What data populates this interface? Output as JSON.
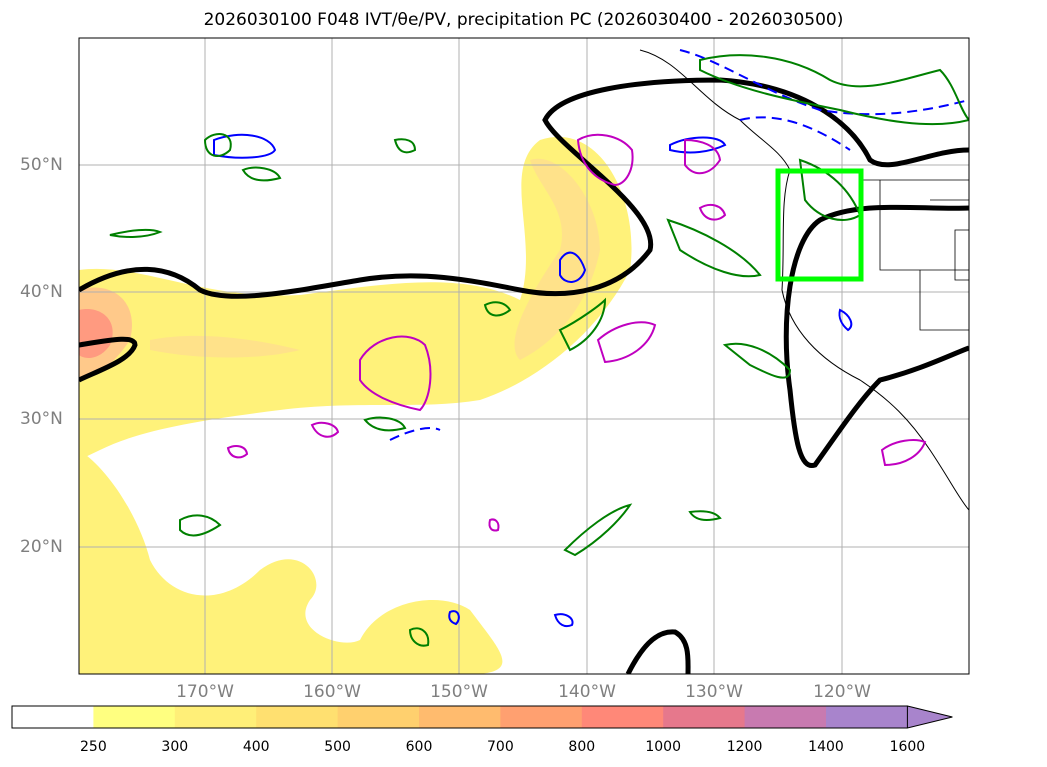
{
  "title": "2026030100 F048 IVT/θe/PV, precipitation PC (2026030400 - 2026030500)",
  "latitude_labels": [
    "50°N",
    "40°N",
    "30°N",
    "20°N"
  ],
  "longitude_labels": [
    "170°W",
    "160°W",
    "150°W",
    "140°W",
    "130°W",
    "120°W"
  ],
  "colorbar": {
    "levels": [
      "250",
      "300",
      "400",
      "500",
      "600",
      "700",
      "800",
      "1000",
      "1200",
      "1400",
      "1600"
    ],
    "colors": [
      "#ffffff",
      "#ffff80",
      "#ffef78",
      "#ffe070",
      "#ffd06e",
      "#ffbb6e",
      "#ffa070",
      "#ff8878",
      "#e6788c",
      "#c87ab0",
      "#a884cc"
    ],
    "extend": "max"
  },
  "colors": {
    "ivt_fill": "#ffe566",
    "theta_e_contour": "#000000",
    "pv_contour": "#0000ff",
    "precip_contour": "#008000",
    "highlight_box": "#00ff00",
    "magenta_contour": "#c000c0"
  }
}
